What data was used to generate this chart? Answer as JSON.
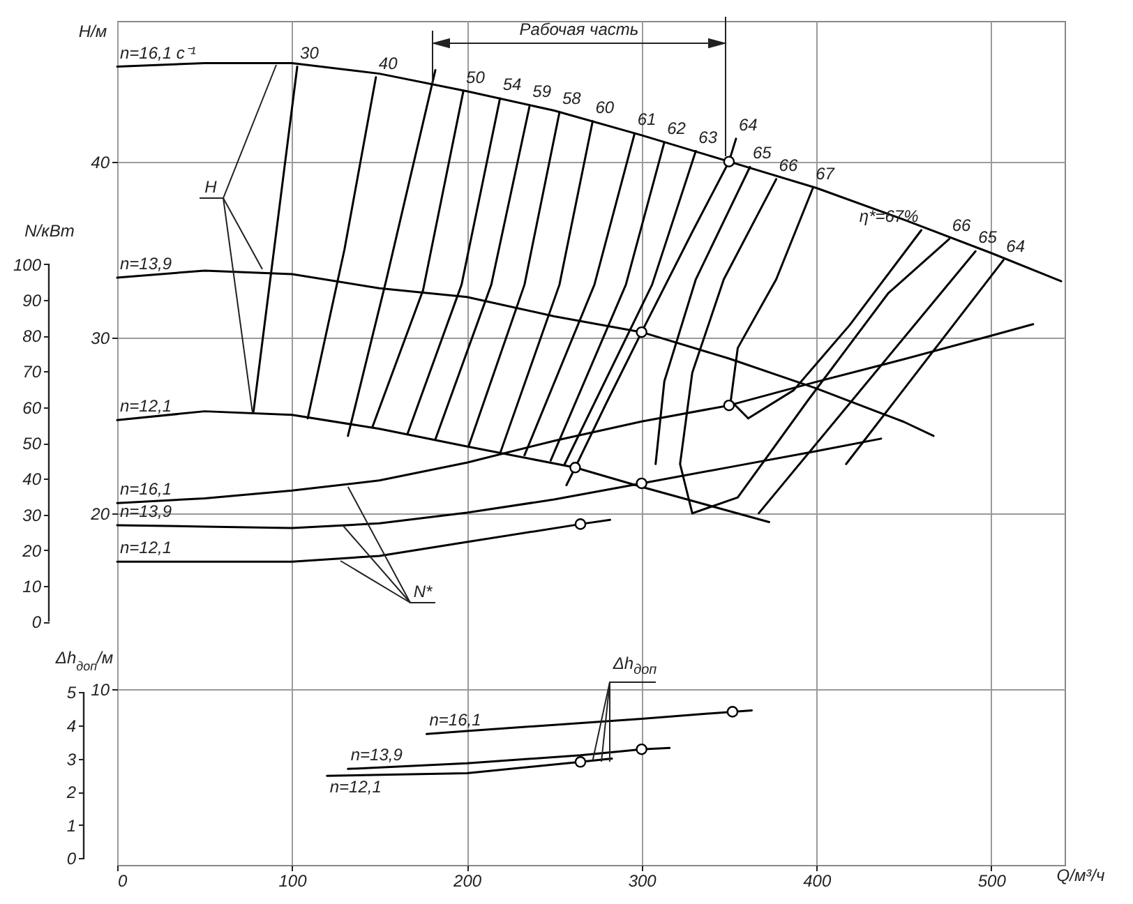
{
  "chart_data": {
    "type": "line",
    "xlabel": "Q/м³/ч",
    "ylabel": "H/м",
    "y2label": "N/кВт",
    "y3label": "Δh$_{доп}$/м",
    "xlim": [
      0,
      542
    ],
    "xticks": [
      0,
      100,
      200,
      300,
      400,
      500
    ],
    "ylim": [
      0,
      48
    ],
    "yticks": [
      10,
      20,
      30,
      40
    ],
    "y2lim": [
      -68,
      168
    ],
    "y2ticks": [
      0,
      10,
      20,
      30,
      40,
      50,
      60,
      70,
      80,
      90,
      100
    ],
    "y3lim": [
      -0.2,
      25.2
    ],
    "y3ticks": [
      0,
      1,
      2,
      3,
      4,
      5
    ],
    "grid": true,
    "annotations": [
      "Рабочая часть",
      {
        "text": "H",
        "x": 91,
        "y": 45.5
      },
      {
        "text": "N*",
        "x": 132,
        "y": 21.5
      },
      {
        "text": "Δh$_{доп}$",
        "x": 272,
        "y": 5.95
      }
    ],
    "series": [
      {
        "name": "n=16,1 с⁻¹",
        "type": "line",
        "color": "#000000",
        "x": [
          0,
          50,
          100,
          150,
          200,
          250,
          300,
          350,
          400,
          450,
          500,
          540
        ],
        "values": [
          45.4,
          45.6,
          45.6,
          45.0,
          44.0,
          42.9,
          41.5,
          40.0,
          38.5,
          36.7,
          34.8,
          33.2
        ]
      },
      {
        "name": "n=13,9",
        "type": "line",
        "color": "#000000",
        "x": [
          0,
          50,
          100,
          150,
          200,
          250,
          300,
          350,
          400,
          450,
          467
        ],
        "values": [
          33.4,
          33.8,
          33.6,
          32.8,
          32.3,
          31.2,
          30.3,
          28.8,
          27.1,
          25.2,
          24.4
        ]
      },
      {
        "name": "n=12,1",
        "type": "line",
        "color": "#000000",
        "x": [
          0,
          50,
          100,
          150,
          200,
          262,
          300,
          373
        ],
        "values": [
          25.3,
          25.8,
          25.6,
          24.8,
          23.8,
          22.6,
          21.5,
          19.5
        ]
      },
      {
        "name": "30",
        "type": "line",
        "color": "#000000",
        "x": [
          103,
          78
        ],
        "values": [
          45.4,
          25.8
        ]
      },
      {
        "name": "40",
        "type": "line",
        "color": "#000000",
        "x": [
          148,
          130,
          109
        ],
        "values": [
          44.8,
          35,
          25.4
        ]
      },
      {
        "type": "line",
        "color": "#000000",
        "x": [
          182,
          154,
          132
        ],
        "values": [
          45.2,
          33.3,
          24.4
        ]
      },
      {
        "name": "50",
        "type": "line",
        "color": "#000000",
        "x": [
          198,
          175,
          146
        ],
        "values": [
          44.0,
          32.7,
          24.9
        ]
      },
      {
        "name": "54",
        "type": "line",
        "color": "#000000",
        "x": [
          219,
          197,
          166
        ],
        "values": [
          43.6,
          33,
          24.5
        ]
      },
      {
        "name": "59",
        "type": "line",
        "color": "#000000",
        "x": [
          236,
          214,
          182
        ],
        "values": [
          43.2,
          33,
          24.2
        ]
      },
      {
        "name": "58",
        "type": "line",
        "color": "#000000",
        "x": [
          253,
          233,
          201
        ],
        "values": [
          42.8,
          33,
          23.8
        ]
      },
      {
        "name": "60",
        "type": "line",
        "color": "#000000",
        "x": [
          272,
          253,
          219
        ],
        "values": [
          42.3,
          33,
          23.4
        ]
      },
      {
        "name": "61",
        "type": "line",
        "color": "#000000",
        "x": [
          296,
          273,
          233
        ],
        "values": [
          41.6,
          33,
          23.3
        ]
      },
      {
        "name": "62",
        "type": "line",
        "color": "#000000",
        "x": [
          313,
          291,
          248
        ],
        "values": [
          41.1,
          33,
          23.0
        ]
      },
      {
        "name": "63",
        "type": "line",
        "color": "#000000",
        "x": [
          331,
          306,
          256
        ],
        "values": [
          40.6,
          33,
          22.8
        ]
      },
      {
        "name": "64",
        "type": "line",
        "color": "#000000",
        "x": [
          354,
          350,
          329,
          300,
          280,
          262,
          257
        ],
        "values": [
          41.3,
          40,
          36,
          30.3,
          26.3,
          22.6,
          21.6
        ]
      },
      {
        "name": "65",
        "type": "line",
        "color": "#000000",
        "x": [
          362,
          331,
          313,
          308
        ],
        "values": [
          39.7,
          33.3,
          27.5,
          22.8
        ]
      },
      {
        "name": "66",
        "type": "line",
        "color": "#000000",
        "x": [
          377,
          347,
          329,
          322,
          329
        ],
        "values": [
          39.0,
          33.3,
          28.0,
          22.8,
          20.0
        ]
      },
      {
        "name": "66",
        "type": "line",
        "color": "#000000",
        "x": [
          476,
          441,
          395,
          355,
          329
        ],
        "values": [
          35.6,
          32.5,
          26.4,
          20.9,
          20.0
        ]
      },
      {
        "name": "67",
        "type": "line",
        "color": "#000000",
        "x": [
          398,
          377,
          355,
          351,
          361
        ],
        "values": [
          38.5,
          33.3,
          29.4,
          26.4,
          25.4
        ]
      },
      {
        "name": "η*=67%",
        "type": "line",
        "color": "#000000",
        "x": [
          460,
          419,
          387,
          361
        ],
        "values": [
          36.1,
          30.7,
          27.0,
          25.4
        ]
      },
      {
        "name": "65",
        "type": "line",
        "color": "#000000",
        "x": [
          491,
          367
        ],
        "values": [
          34.9,
          20.0
        ]
      },
      {
        "name": "64",
        "type": "line",
        "color": "#000000",
        "x": [
          507,
          417
        ],
        "values": [
          34.4,
          22.8
        ]
      },
      {
        "type": "scatter",
        "color": "#000000",
        "x": [
          350,
          300,
          262
        ],
        "values": [
          40,
          30.3,
          22.6
        ]
      },
      {
        "name": "n=16,1",
        "type": "line",
        "axis": "y2",
        "color": "#000000",
        "x": [
          0,
          50,
          100,
          150,
          200,
          250,
          300,
          350,
          400,
          450,
          500,
          524
        ],
        "values": [
          33.2,
          34.5,
          36.7,
          39.5,
          44.5,
          50.6,
          56,
          60.5,
          67.1,
          73.4,
          80,
          83.2
        ]
      },
      {
        "name": "n=13,9",
        "type": "line",
        "axis": "y2",
        "color": "#000000",
        "x": [
          0,
          50,
          100,
          150,
          200,
          250,
          300,
          350,
          400,
          437
        ],
        "values": [
          27,
          26.6,
          26.2,
          27.5,
          30.5,
          34.2,
          38.7,
          43.2,
          47.7,
          51.2
        ]
      },
      {
        "name": "n=12,1",
        "type": "line",
        "axis": "y2",
        "color": "#000000",
        "x": [
          0,
          50,
          100,
          150,
          200,
          265,
          282
        ],
        "values": [
          16.8,
          16.8,
          16.8,
          18.4,
          22.3,
          27.3,
          28.5
        ]
      },
      {
        "type": "scatter",
        "axis": "y2",
        "color": "#000000",
        "x": [
          350,
          300,
          265
        ],
        "values": [
          60.5,
          38.7,
          27.3
        ]
      },
      {
        "name": "n=16,1",
        "type": "line",
        "axis": "y3",
        "color": "#000000",
        "x": [
          177,
          200,
          300,
          352,
          363
        ],
        "values": [
          3.74,
          3.83,
          4.2,
          4.41,
          4.45
        ]
      },
      {
        "name": "n=13,9",
        "type": "line",
        "axis": "y3",
        "color": "#000000",
        "x": [
          132,
          200,
          265,
          300,
          316
        ],
        "values": [
          2.69,
          2.86,
          3.1,
          3.28,
          3.32
        ]
      },
      {
        "name": "n=12,1",
        "type": "line",
        "axis": "y3",
        "color": "#000000",
        "x": [
          120,
          200,
          265,
          283
        ],
        "values": [
          2.48,
          2.56,
          2.9,
          3.0
        ]
      },
      {
        "type": "scatter",
        "axis": "y3",
        "color": "#000000",
        "x": [
          352,
          300,
          265
        ],
        "values": [
          4.41,
          3.28,
          2.9
        ]
      }
    ]
  }
}
